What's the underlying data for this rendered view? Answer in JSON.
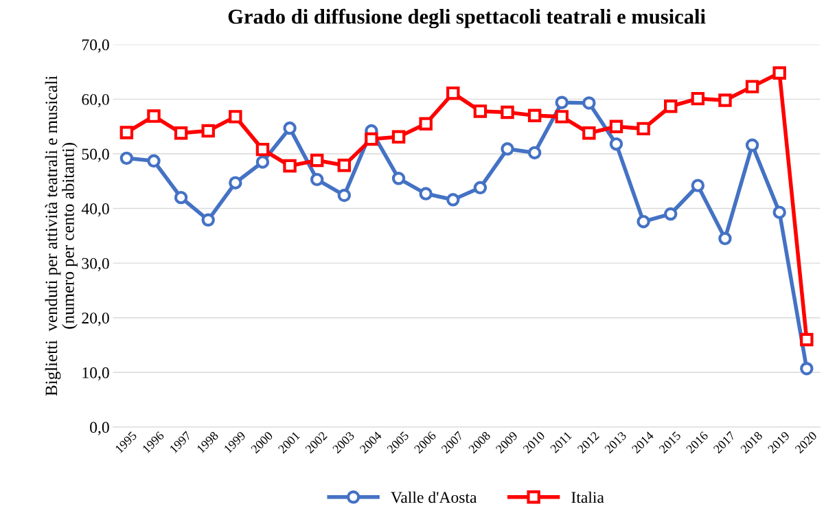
{
  "chart_data": {
    "type": "line",
    "title": "Grado di diffusione degli spettacoli teatrali e musicali",
    "ylabel": "Biglietti  venduti per attività teatrali e musicali\n(numero per cento abitanti)",
    "categories": [
      "1995",
      "1996",
      "1997",
      "1998",
      "1999",
      "2000",
      "2001",
      "2002",
      "2003",
      "2004",
      "2005",
      "2006",
      "2007",
      "2008",
      "2009",
      "2010",
      "2011",
      "2012",
      "2013",
      "2014",
      "2015",
      "2016",
      "2017",
      "2018",
      "2019",
      "2020"
    ],
    "series": [
      {
        "name": "Valle d'Aosta",
        "color": "#4472c4",
        "marker": "circle",
        "values": [
          49.2,
          48.7,
          42.0,
          37.9,
          44.7,
          48.5,
          54.7,
          45.3,
          42.4,
          54.2,
          45.5,
          42.7,
          41.6,
          43.8,
          50.9,
          50.2,
          59.4,
          59.3,
          51.8,
          37.6,
          39.0,
          44.2,
          34.5,
          51.6,
          39.3,
          10.7
        ]
      },
      {
        "name": "Italia",
        "color": "#ff0000",
        "marker": "square",
        "values": [
          53.9,
          56.9,
          53.8,
          54.2,
          56.8,
          50.8,
          47.8,
          48.8,
          47.9,
          52.7,
          53.1,
          55.5,
          61.1,
          57.8,
          57.6,
          57.0,
          56.8,
          53.8,
          55.0,
          54.6,
          58.7,
          60.1,
          59.8,
          62.3,
          64.8,
          16.0
        ]
      }
    ],
    "ylim": [
      0,
      70
    ],
    "yticks": [
      {
        "value": 0,
        "label": "0,0"
      },
      {
        "value": 10,
        "label": "10,0"
      },
      {
        "value": 20,
        "label": "20,0"
      },
      {
        "value": 30,
        "label": "30,0"
      },
      {
        "value": 40,
        "label": "40,0"
      },
      {
        "value": 50,
        "label": "50,0"
      },
      {
        "value": 60,
        "label": "60,0"
      },
      {
        "value": 70,
        "label": "70,0"
      }
    ],
    "grid": "y",
    "legend": "bottom",
    "line_style": "solid"
  }
}
